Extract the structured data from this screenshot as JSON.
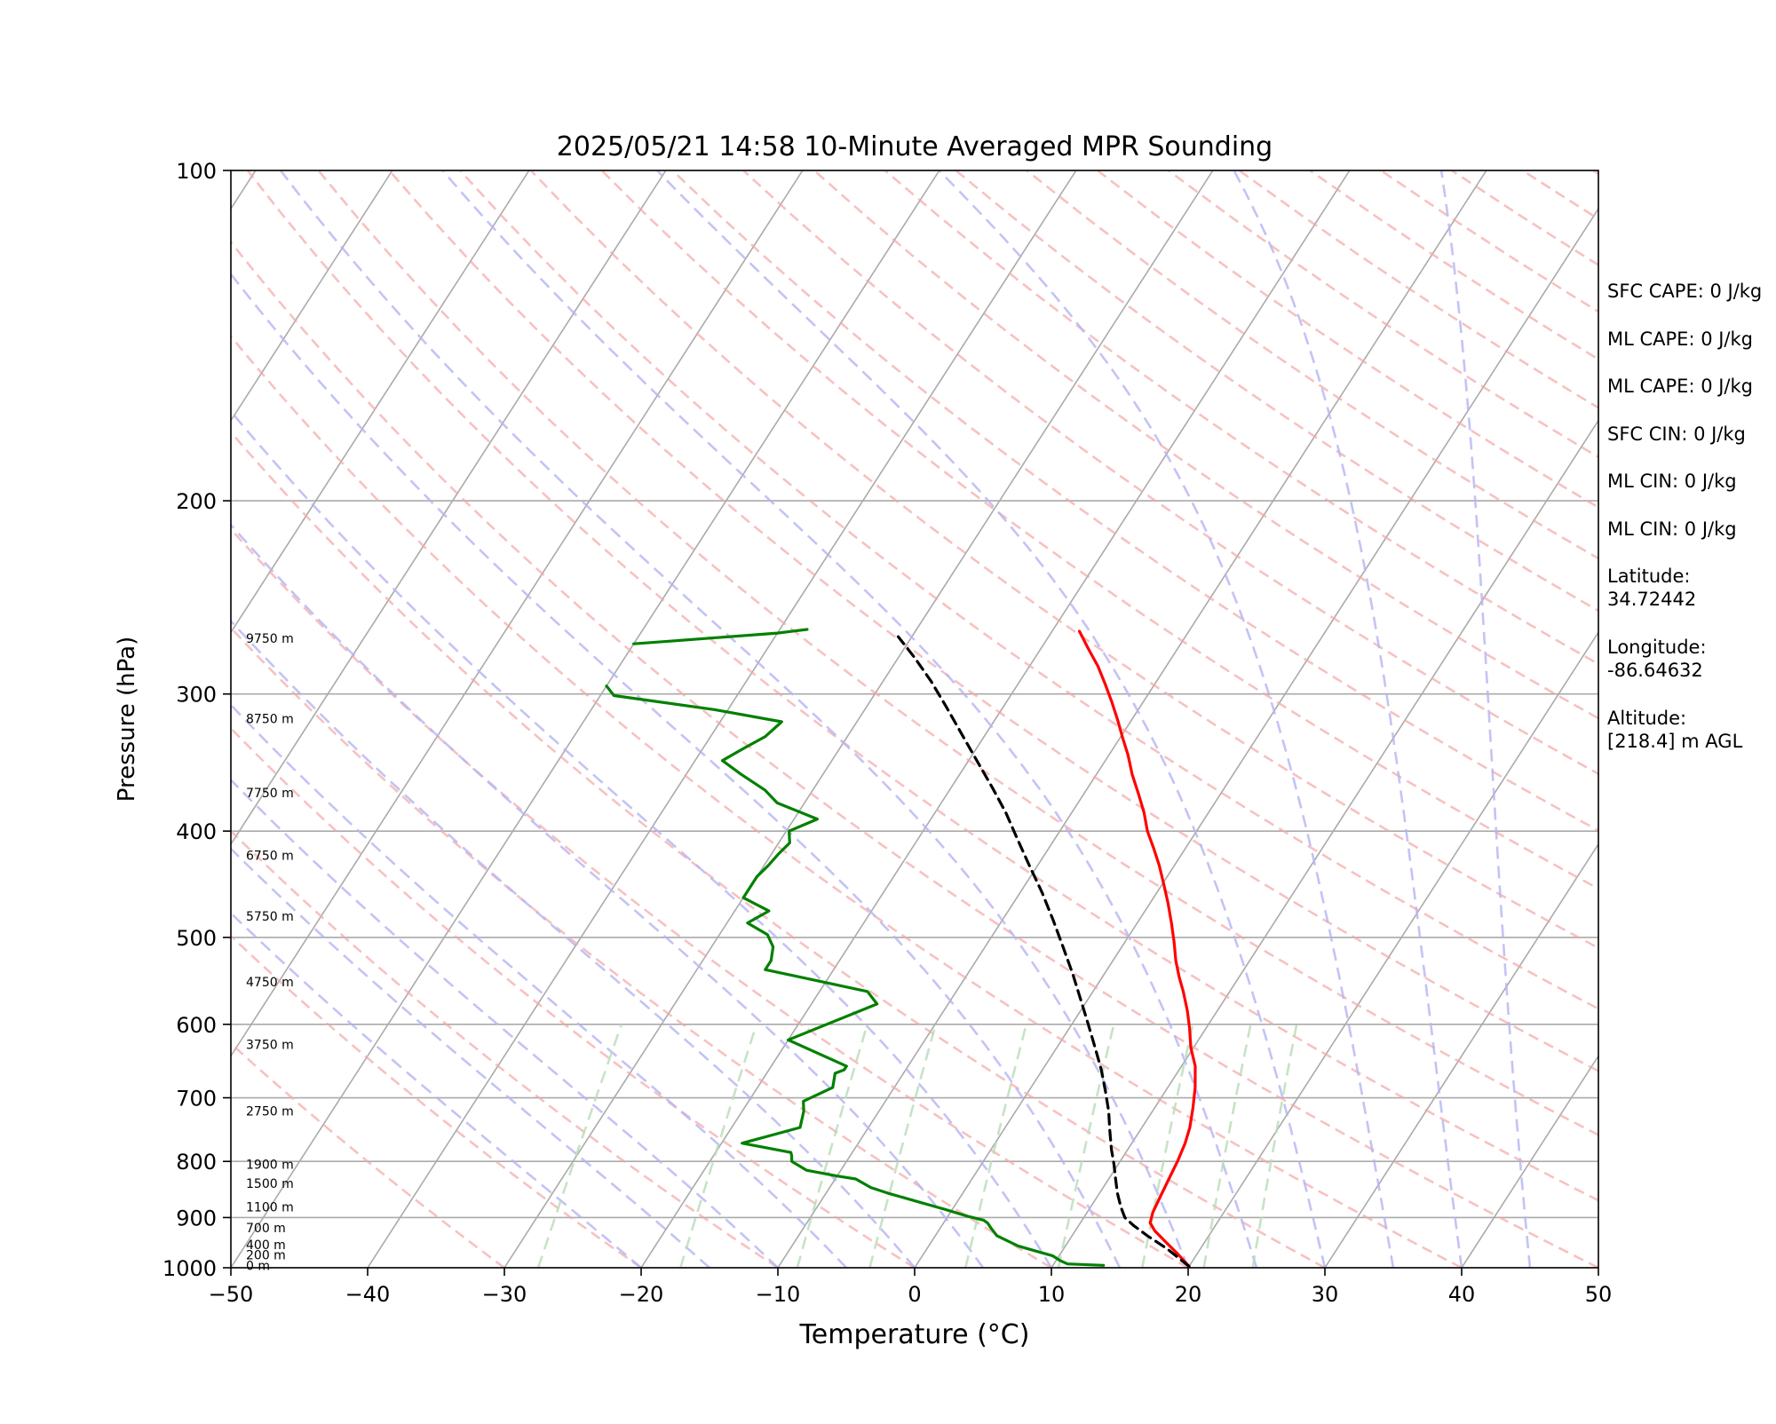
{
  "chart_data": {
    "type": "line",
    "title": "2025/05/21 14:58 10-Minute Averaged MPR Sounding",
    "xlabel": "Temperature (°C)",
    "ylabel": "Pressure (hPa)",
    "xlim": [
      -50,
      50
    ],
    "ylim": [
      1000,
      100
    ],
    "y_scale": "log",
    "x_ticks": [
      "−50",
      "−40",
      "−30",
      "−20",
      "−10",
      "0",
      "10",
      "20",
      "30",
      "40",
      "50"
    ],
    "y_ticks": [
      "100",
      "200",
      "300",
      "400",
      "500",
      "600",
      "700",
      "800",
      "900",
      "1000"
    ],
    "grid": true,
    "series": [
      {
        "color": "#ff0000",
        "points": [
          [
            20.0,
            997
          ],
          [
            18.5,
            970
          ],
          [
            17.0,
            945
          ],
          [
            15.8,
            925
          ],
          [
            15.1,
            910
          ],
          [
            14.8,
            890
          ],
          [
            14.6,
            860
          ],
          [
            14.4,
            830
          ],
          [
            14.2,
            800
          ],
          [
            13.9,
            770
          ],
          [
            13.5,
            745
          ],
          [
            12.8,
            715
          ],
          [
            12.0,
            685
          ],
          [
            11.0,
            655
          ],
          [
            9.8,
            630
          ],
          [
            8.8,
            605
          ],
          [
            7.8,
            583
          ],
          [
            6.6,
            560
          ],
          [
            5.6,
            543
          ],
          [
            4.6,
            525
          ],
          [
            3.6,
            505
          ],
          [
            2.5,
            485
          ],
          [
            1.3,
            465
          ],
          [
            0.1,
            447
          ],
          [
            -1.1,
            430
          ],
          [
            -2.3,
            415
          ],
          [
            -3.6,
            400
          ],
          [
            -4.7,
            385
          ],
          [
            -6.0,
            370
          ],
          [
            -7.4,
            355
          ],
          [
            -8.6,
            341
          ],
          [
            -9.8,
            329
          ],
          [
            -11.0,
            317
          ],
          [
            -12.3,
            305
          ],
          [
            -13.6,
            294
          ],
          [
            -15.0,
            283
          ],
          [
            -16.5,
            273
          ],
          [
            -18.0,
            263
          ]
        ]
      },
      {
        "color": "#000000",
        "dashed": true,
        "points": [
          [
            20.0,
            997
          ],
          [
            17.5,
            960
          ],
          [
            15.5,
            935
          ],
          [
            14.0,
            915
          ],
          [
            13.0,
            900
          ],
          [
            12.2,
            880
          ],
          [
            11.3,
            855
          ],
          [
            10.5,
            830
          ],
          [
            9.7,
            805
          ],
          [
            8.8,
            780
          ],
          [
            7.8,
            750
          ],
          [
            6.8,
            720
          ],
          [
            5.6,
            690
          ],
          [
            4.3,
            660
          ],
          [
            2.8,
            630
          ],
          [
            1.2,
            600
          ],
          [
            -0.5,
            570
          ],
          [
            -2.3,
            540
          ],
          [
            -4.3,
            510
          ],
          [
            -6.3,
            482
          ],
          [
            -8.4,
            455
          ],
          [
            -10.6,
            430
          ],
          [
            -12.7,
            407
          ],
          [
            -14.8,
            385
          ],
          [
            -17.0,
            365
          ],
          [
            -19.4,
            345
          ],
          [
            -21.8,
            326
          ],
          [
            -24.2,
            308
          ],
          [
            -26.5,
            292
          ],
          [
            -28.8,
            278
          ],
          [
            -31.0,
            266
          ]
        ]
      },
      {
        "color": "#008000",
        "points": [
          [
            13.7,
            995
          ],
          [
            11.0,
            992
          ],
          [
            10.3,
            985
          ],
          [
            9.5,
            975
          ],
          [
            8.0,
            965
          ],
          [
            6.5,
            955
          ],
          [
            5.5,
            945
          ],
          [
            4.5,
            935
          ],
          [
            3.7,
            920
          ],
          [
            3.2,
            910
          ],
          [
            2.8,
            905
          ],
          [
            1.5,
            898
          ],
          [
            -0.5,
            885
          ],
          [
            -3.0,
            870
          ],
          [
            -5.5,
            855
          ],
          [
            -7.0,
            845
          ],
          [
            -7.5,
            840
          ],
          [
            -8.0,
            835
          ],
          [
            -8.5,
            830
          ],
          [
            -10.0,
            825
          ],
          [
            -12.5,
            815
          ],
          [
            -14.0,
            800
          ],
          [
            -14.3,
            790
          ],
          [
            -14.5,
            785
          ],
          [
            -18.5,
            770
          ],
          [
            -15.0,
            745
          ],
          [
            -15.5,
            720
          ],
          [
            -16.0,
            705
          ],
          [
            -14.5,
            685
          ],
          [
            -15.0,
            665
          ],
          [
            -14.5,
            660
          ],
          [
            -14.5,
            655
          ],
          [
            -20.0,
            620
          ],
          [
            -15.2,
            575
          ],
          [
            -16.5,
            560
          ],
          [
            -25.0,
            535
          ],
          [
            -25.0,
            525
          ],
          [
            -25.5,
            510
          ],
          [
            -26.5,
            497
          ],
          [
            -28.5,
            485
          ],
          [
            -27.5,
            473
          ],
          [
            -30.0,
            460
          ],
          [
            -30.0,
            450
          ],
          [
            -30.0,
            440
          ],
          [
            -29.7,
            430
          ],
          [
            -29.5,
            420
          ],
          [
            -29.2,
            410
          ],
          [
            -29.8,
            400
          ],
          [
            -28.3,
            390
          ],
          [
            -32.0,
            377
          ],
          [
            -33.5,
            367
          ],
          [
            -36.0,
            355
          ],
          [
            -38.0,
            345
          ],
          [
            -37.0,
            336
          ],
          [
            -36.0,
            328
          ],
          [
            -35.5,
            318
          ],
          [
            -41.0,
            310
          ],
          [
            -49.0,
            301
          ],
          [
            -50.0,
            295
          ]
        ]
      },
      {
        "color": "#008000",
        "points": [
          [
            -50.0,
            270
          ],
          [
            -45.0,
            267
          ],
          [
            -40.0,
            264
          ],
          [
            -38.0,
            262
          ]
        ]
      }
    ],
    "height_labels": [
      {
        "text": "9750 m",
        "p": 267
      },
      {
        "text": "8750 m",
        "p": 316
      },
      {
        "text": "7750 m",
        "p": 369
      },
      {
        "text": "6750 m",
        "p": 421
      },
      {
        "text": "5750 m",
        "p": 478
      },
      {
        "text": "4750 m",
        "p": 549
      },
      {
        "text": "3750 m",
        "p": 626
      },
      {
        "text": "2750 m",
        "p": 720
      },
      {
        "text": "1900 m",
        "p": 805
      },
      {
        "text": "1500 m",
        "p": 838
      },
      {
        "text": "1100 m",
        "p": 880
      },
      {
        "text": "700 m",
        "p": 920
      },
      {
        "text": "400 m",
        "p": 953
      },
      {
        "text": "200 m",
        "p": 973
      },
      {
        "text": "0 m",
        "p": 995
      }
    ]
  },
  "stats": {
    "sfc_cape": "SFC CAPE: 0 J/kg",
    "ml_cape_1": "ML CAPE: 0 J/kg",
    "ml_cape_2": "ML CAPE: 0 J/kg",
    "sfc_cin": "SFC CIN: 0 J/kg",
    "ml_cin_1": "ML CIN: 0 J/kg",
    "ml_cin_2": "ML CIN: 0 J/kg",
    "latitude_label": "Latitude:",
    "latitude_value": "34.72442",
    "longitude_label": "Longitude:",
    "longitude_value": "-86.64632",
    "altitude_label": "Altitude:",
    "altitude_value": "[218.4] m AGL"
  }
}
